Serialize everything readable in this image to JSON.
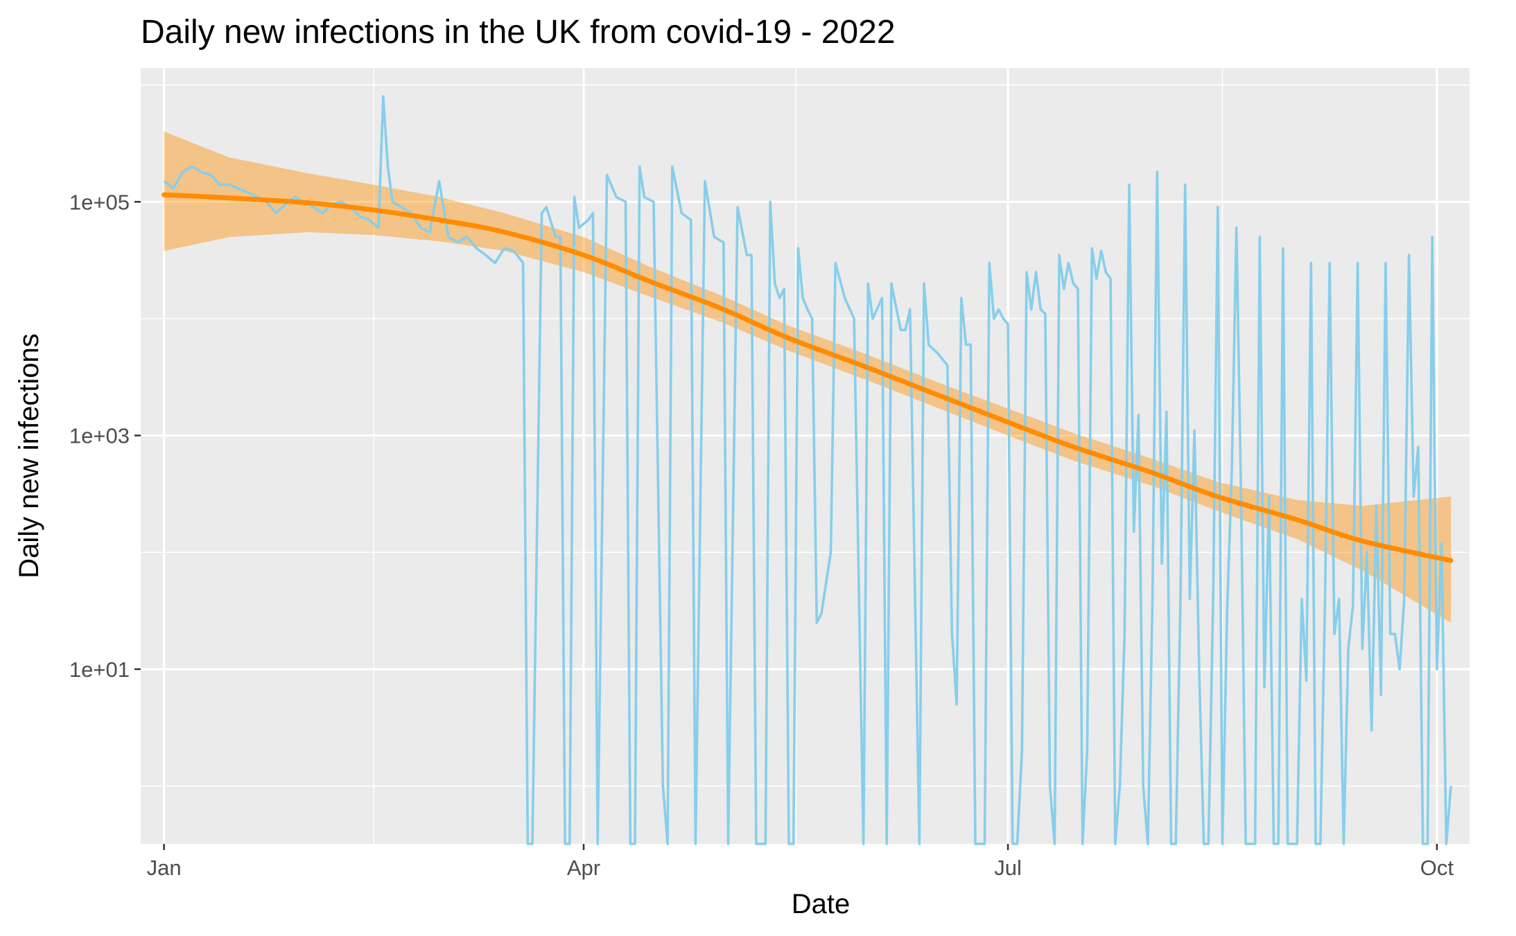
{
  "chart_data": {
    "type": "line",
    "title": "Daily new infections in the UK from covid-19 - 2022",
    "xlabel": "Date",
    "ylabel": "Daily new infections",
    "x_axis": {
      "type": "date",
      "range": [
        "2021-12-27",
        "2022-10-08"
      ],
      "ticks": [
        {
          "date": "2022-01-01",
          "label": "Jan"
        },
        {
          "date": "2022-04-01",
          "label": "Apr"
        },
        {
          "date": "2022-07-01",
          "label": "Jul"
        },
        {
          "date": "2022-10-01",
          "label": "Oct"
        }
      ]
    },
    "y_axis": {
      "scale": "log10",
      "range": [
        0.32,
        1400000
      ],
      "ticks": [
        {
          "value": 100000,
          "label": "1e+05"
        },
        {
          "value": 1000,
          "label": "1e+03"
        },
        {
          "value": 10,
          "label": "1e+01"
        }
      ]
    },
    "grid": true,
    "background": "#ebebeb",
    "series": [
      {
        "type": "line",
        "color": "#87ceeb",
        "points": [
          [
            "2022-01-01",
            150000
          ],
          [
            "2022-01-03",
            130000
          ],
          [
            "2022-01-05",
            180000
          ],
          [
            "2022-01-07",
            200000
          ],
          [
            "2022-01-09",
            180000
          ],
          [
            "2022-01-11",
            170000
          ],
          [
            "2022-01-13",
            140000
          ],
          [
            "2022-01-15",
            140000
          ],
          [
            "2022-01-17",
            130000
          ],
          [
            "2022-01-19",
            120000
          ],
          [
            "2022-01-21",
            110000
          ],
          [
            "2022-01-23",
            100000
          ],
          [
            "2022-01-25",
            80000
          ],
          [
            "2022-01-27",
            95000
          ],
          [
            "2022-01-29",
            110000
          ],
          [
            "2022-01-31",
            100000
          ],
          [
            "2022-02-02",
            90000
          ],
          [
            "2022-02-04",
            80000
          ],
          [
            "2022-02-06",
            95000
          ],
          [
            "2022-02-08",
            100000
          ],
          [
            "2022-02-10",
            90000
          ],
          [
            "2022-02-12",
            75000
          ],
          [
            "2022-02-14",
            70000
          ],
          [
            "2022-02-16",
            60000
          ],
          [
            "2022-02-17",
            800000
          ],
          [
            "2022-02-18",
            200000
          ],
          [
            "2022-02-19",
            100000
          ],
          [
            "2022-02-21",
            90000
          ],
          [
            "2022-02-23",
            80000
          ],
          [
            "2022-02-25",
            60000
          ],
          [
            "2022-02-27",
            55000
          ],
          [
            "2022-03-01",
            150000
          ],
          [
            "2022-03-03",
            50000
          ],
          [
            "2022-03-05",
            45000
          ],
          [
            "2022-03-07",
            50000
          ],
          [
            "2022-03-09",
            40000
          ],
          [
            "2022-03-11",
            35000
          ],
          [
            "2022-03-13",
            30000
          ],
          [
            "2022-03-15",
            40000
          ],
          [
            "2022-03-17",
            38000
          ],
          [
            "2022-03-19",
            30000
          ],
          [
            "2022-03-20",
            0.3
          ],
          [
            "2022-03-21",
            0.3
          ],
          [
            "2022-03-23",
            80000
          ],
          [
            "2022-03-24",
            90000
          ],
          [
            "2022-03-26",
            50000
          ],
          [
            "2022-03-27",
            50000
          ],
          [
            "2022-03-28",
            0.3
          ],
          [
            "2022-03-29",
            0.3
          ],
          [
            "2022-03-30",
            110000
          ],
          [
            "2022-03-31",
            60000
          ],
          [
            "2022-04-02",
            70000
          ],
          [
            "2022-04-03",
            80000
          ],
          [
            "2022-04-04",
            0.3
          ],
          [
            "2022-04-06",
            170000
          ],
          [
            "2022-04-08",
            110000
          ],
          [
            "2022-04-10",
            100000
          ],
          [
            "2022-04-11",
            0.3
          ],
          [
            "2022-04-12",
            0.3
          ],
          [
            "2022-04-13",
            200000
          ],
          [
            "2022-04-14",
            110000
          ],
          [
            "2022-04-16",
            100000
          ],
          [
            "2022-04-18",
            1.0
          ],
          [
            "2022-04-19",
            0.3
          ],
          [
            "2022-04-20",
            200000
          ],
          [
            "2022-04-22",
            80000
          ],
          [
            "2022-04-24",
            70000
          ],
          [
            "2022-04-25",
            0.3
          ],
          [
            "2022-04-27",
            150000
          ],
          [
            "2022-04-29",
            50000
          ],
          [
            "2022-05-01",
            45000
          ],
          [
            "2022-05-02",
            0.3
          ],
          [
            "2022-05-04",
            90000
          ],
          [
            "2022-05-06",
            35000
          ],
          [
            "2022-05-07",
            35000
          ],
          [
            "2022-05-08",
            0.3
          ],
          [
            "2022-05-09",
            0.3
          ],
          [
            "2022-05-10",
            0.3
          ],
          [
            "2022-05-11",
            100000
          ],
          [
            "2022-05-12",
            20000
          ],
          [
            "2022-05-13",
            15000
          ],
          [
            "2022-05-14",
            18000
          ],
          [
            "2022-05-15",
            0.3
          ],
          [
            "2022-05-16",
            0.3
          ],
          [
            "2022-05-17",
            40000
          ],
          [
            "2022-05-18",
            15000
          ],
          [
            "2022-05-19",
            12000
          ],
          [
            "2022-05-20",
            10000
          ],
          [
            "2022-05-21",
            25
          ],
          [
            "2022-05-22",
            30
          ],
          [
            "2022-05-24",
            100
          ],
          [
            "2022-05-25",
            30000
          ],
          [
            "2022-05-27",
            15000
          ],
          [
            "2022-05-29",
            10000
          ],
          [
            "2022-05-31",
            0.3
          ],
          [
            "2022-06-01",
            20000
          ],
          [
            "2022-06-02",
            10000
          ],
          [
            "2022-06-04",
            15000
          ],
          [
            "2022-06-05",
            0.3
          ],
          [
            "2022-06-06",
            20000
          ],
          [
            "2022-06-08",
            8000
          ],
          [
            "2022-06-09",
            8000
          ],
          [
            "2022-06-10",
            12000
          ],
          [
            "2022-06-12",
            0.3
          ],
          [
            "2022-06-13",
            20000
          ],
          [
            "2022-06-14",
            6000
          ],
          [
            "2022-06-16",
            5000
          ],
          [
            "2022-06-18",
            4000
          ],
          [
            "2022-06-19",
            20
          ],
          [
            "2022-06-20",
            5
          ],
          [
            "2022-06-21",
            15000
          ],
          [
            "2022-06-22",
            6000
          ],
          [
            "2022-06-23",
            6000
          ],
          [
            "2022-06-24",
            0.3
          ],
          [
            "2022-06-25",
            0.3
          ],
          [
            "2022-06-26",
            0.3
          ],
          [
            "2022-06-27",
            30000
          ],
          [
            "2022-06-28",
            10000
          ],
          [
            "2022-06-29",
            12000
          ],
          [
            "2022-06-30",
            10000
          ],
          [
            "2022-07-01",
            9000
          ],
          [
            "2022-07-02",
            0.3
          ],
          [
            "2022-07-03",
            0.3
          ],
          [
            "2022-07-04",
            2
          ],
          [
            "2022-07-05",
            25000
          ],
          [
            "2022-07-06",
            12000
          ],
          [
            "2022-07-07",
            25000
          ],
          [
            "2022-07-08",
            12000
          ],
          [
            "2022-07-09",
            11000
          ],
          [
            "2022-07-10",
            1
          ],
          [
            "2022-07-11",
            0.3
          ],
          [
            "2022-07-12",
            35000
          ],
          [
            "2022-07-13",
            18000
          ],
          [
            "2022-07-14",
            30000
          ],
          [
            "2022-07-15",
            20000
          ],
          [
            "2022-07-16",
            18000
          ],
          [
            "2022-07-17",
            0.3
          ],
          [
            "2022-07-18",
            2
          ],
          [
            "2022-07-19",
            40000
          ],
          [
            "2022-07-20",
            22000
          ],
          [
            "2022-07-21",
            38000
          ],
          [
            "2022-07-22",
            25000
          ],
          [
            "2022-07-23",
            22000
          ],
          [
            "2022-07-24",
            0.3
          ],
          [
            "2022-07-25",
            1
          ],
          [
            "2022-07-26",
            20
          ],
          [
            "2022-07-27",
            140000
          ],
          [
            "2022-07-28",
            150
          ],
          [
            "2022-07-29",
            1500
          ],
          [
            "2022-07-30",
            1
          ],
          [
            "2022-07-31",
            0.3
          ],
          [
            "2022-08-01",
            40
          ],
          [
            "2022-08-02",
            180000
          ],
          [
            "2022-08-03",
            80
          ],
          [
            "2022-08-04",
            1600
          ],
          [
            "2022-08-05",
            0.3
          ],
          [
            "2022-08-06",
            0.3
          ],
          [
            "2022-08-07",
            40
          ],
          [
            "2022-08-08",
            140000
          ],
          [
            "2022-08-09",
            40
          ],
          [
            "2022-08-10",
            1100
          ],
          [
            "2022-08-11",
            10
          ],
          [
            "2022-08-12",
            0.3
          ],
          [
            "2022-08-13",
            0.3
          ],
          [
            "2022-08-14",
            40
          ],
          [
            "2022-08-15",
            90000
          ],
          [
            "2022-08-16",
            0.3
          ],
          [
            "2022-08-17",
            30
          ],
          [
            "2022-08-18",
            500
          ],
          [
            "2022-08-19",
            60000
          ],
          [
            "2022-08-20",
            300
          ],
          [
            "2022-08-21",
            0.3
          ],
          [
            "2022-08-22",
            0.3
          ],
          [
            "2022-08-23",
            0.3
          ],
          [
            "2022-08-24",
            50000
          ],
          [
            "2022-08-25",
            7
          ],
          [
            "2022-08-26",
            300
          ],
          [
            "2022-08-27",
            0.3
          ],
          [
            "2022-08-28",
            0.3
          ],
          [
            "2022-08-29",
            40000
          ],
          [
            "2022-08-30",
            0.3
          ],
          [
            "2022-08-31",
            0.3
          ],
          [
            "2022-09-01",
            0.3
          ],
          [
            "2022-09-02",
            40
          ],
          [
            "2022-09-03",
            8
          ],
          [
            "2022-09-04",
            30000
          ],
          [
            "2022-09-05",
            0.3
          ],
          [
            "2022-09-06",
            0.3
          ],
          [
            "2022-09-07",
            40
          ],
          [
            "2022-09-08",
            30000
          ],
          [
            "2022-09-09",
            20
          ],
          [
            "2022-09-10",
            40
          ],
          [
            "2022-09-11",
            0.3
          ],
          [
            "2022-09-12",
            15
          ],
          [
            "2022-09-13",
            35
          ],
          [
            "2022-09-14",
            30000
          ],
          [
            "2022-09-15",
            15
          ],
          [
            "2022-09-16",
            100
          ],
          [
            "2022-09-17",
            3
          ],
          [
            "2022-09-18",
            250
          ],
          [
            "2022-09-19",
            6
          ],
          [
            "2022-09-20",
            30000
          ],
          [
            "2022-09-21",
            20
          ],
          [
            "2022-09-22",
            20
          ],
          [
            "2022-09-23",
            10
          ],
          [
            "2022-09-24",
            40
          ],
          [
            "2022-09-25",
            35000
          ],
          [
            "2022-09-26",
            300
          ],
          [
            "2022-09-27",
            800
          ],
          [
            "2022-09-28",
            0.3
          ],
          [
            "2022-09-29",
            0.3
          ],
          [
            "2022-09-30",
            50000
          ],
          [
            "2022-10-01",
            10
          ],
          [
            "2022-10-02",
            120
          ],
          [
            "2022-10-03",
            0.3
          ],
          [
            "2022-10-04",
            1
          ]
        ]
      },
      {
        "type": "smooth",
        "color": "#ff8c00",
        "band_color": "#ff8c00",
        "points": [
          [
            "2022-01-01",
            115000,
            38000,
            400000
          ],
          [
            "2022-01-15",
            108000,
            50000,
            240000
          ],
          [
            "2022-02-01",
            98000,
            55000,
            175000
          ],
          [
            "2022-02-15",
            85000,
            52000,
            140000
          ],
          [
            "2022-03-01",
            70000,
            46000,
            110000
          ],
          [
            "2022-03-15",
            55000,
            38000,
            80000
          ],
          [
            "2022-04-01",
            35000,
            25000,
            50000
          ],
          [
            "2022-04-15",
            21000,
            15500,
            28000
          ],
          [
            "2022-05-01",
            12000,
            9200,
            15500
          ],
          [
            "2022-05-15",
            6800,
            5300,
            8700
          ],
          [
            "2022-06-01",
            3800,
            2950,
            4900
          ],
          [
            "2022-06-15",
            2300,
            1780,
            2950
          ],
          [
            "2022-07-01",
            1300,
            1000,
            1700
          ],
          [
            "2022-07-15",
            800,
            610,
            1050
          ],
          [
            "2022-08-01",
            480,
            370,
            630
          ],
          [
            "2022-08-15",
            300,
            225,
            400
          ],
          [
            "2022-09-01",
            190,
            130,
            280
          ],
          [
            "2022-09-15",
            125,
            70,
            250
          ],
          [
            "2022-10-04",
            85,
            25,
            300
          ]
        ]
      }
    ]
  }
}
